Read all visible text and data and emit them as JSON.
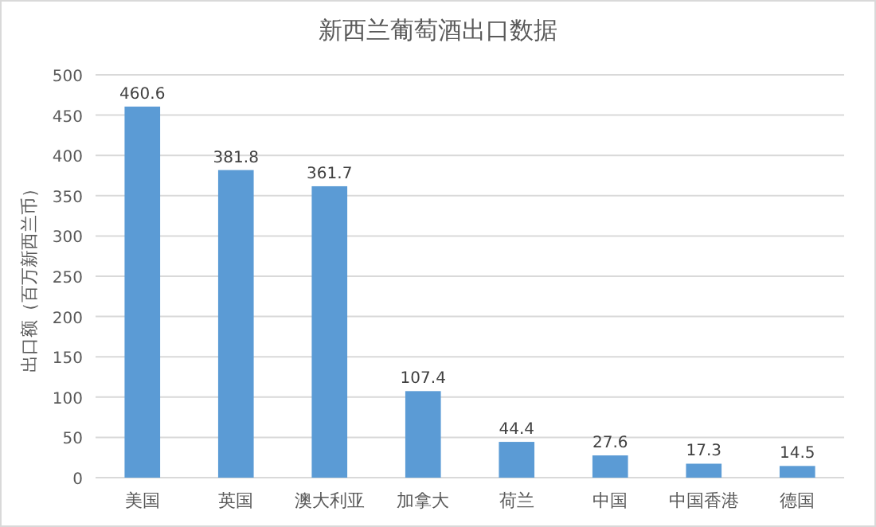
{
  "chart_data": {
    "type": "bar",
    "title": "新西兰葡萄酒出口数据",
    "ylabel": "出口额（百万新西兰币）",
    "categories": [
      "美国",
      "英国",
      "澳大利亚",
      "加拿大",
      "荷兰",
      "中国",
      "中国香港",
      "德国"
    ],
    "values": [
      460.6,
      381.8,
      361.7,
      107.4,
      44.4,
      27.6,
      17.3,
      14.5
    ],
    "color": "#5b9bd5",
    "ylim": [
      0,
      500
    ],
    "yticks": [
      0,
      50,
      100,
      150,
      200,
      250,
      300,
      350,
      400,
      450,
      500
    ],
    "grid": "y",
    "data_labels": true
  }
}
